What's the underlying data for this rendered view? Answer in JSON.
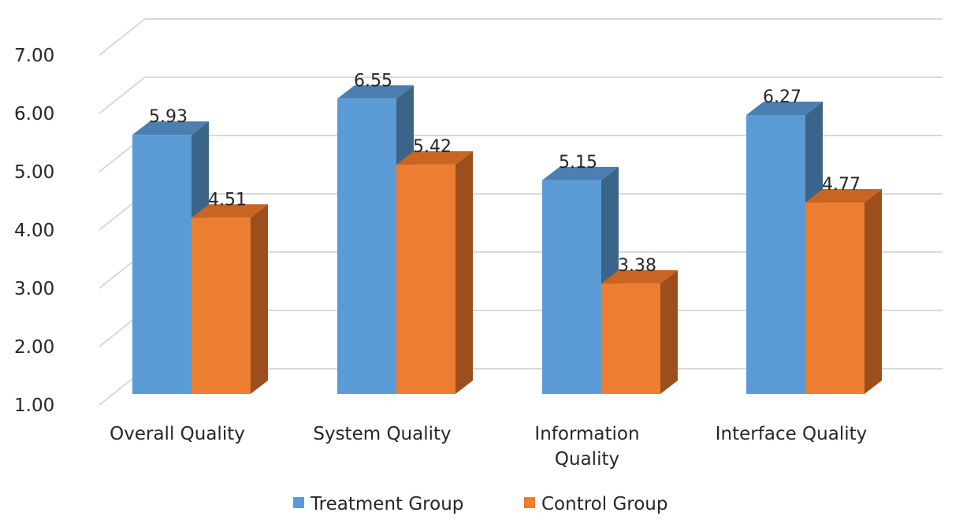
{
  "chart_data": {
    "type": "bar",
    "variant": "3d-clustered-column",
    "categories": [
      [
        "Overall Quality"
      ],
      [
        "System Quality"
      ],
      [
        "Information",
        "Quality"
      ],
      [
        "Interface Quality"
      ]
    ],
    "series": [
      {
        "name": "Treatment Group",
        "values": [
          5.93,
          6.55,
          5.15,
          6.27
        ],
        "labels": [
          "5.93",
          "6.55",
          "5.15",
          "6.27"
        ],
        "color": "#5b9bd5",
        "side_color": "#3a6589",
        "top_color": "#4a7fb0"
      },
      {
        "name": "Control Group",
        "values": [
          4.51,
          5.42,
          3.38,
          4.77
        ],
        "labels": [
          "4.51",
          "5.42",
          "3.38",
          "4.77"
        ],
        "color": "#ed7d31",
        "side_color": "#9c4f1d",
        "top_color": "#c96522"
      }
    ],
    "yticks": [
      "1.00",
      "2.00",
      "3.00",
      "4.00",
      "5.00",
      "6.00",
      "7.00"
    ],
    "ylim": [
      1,
      7
    ],
    "title": "",
    "xlabel": "",
    "ylabel": "",
    "grid": true,
    "legend_position": "bottom"
  }
}
